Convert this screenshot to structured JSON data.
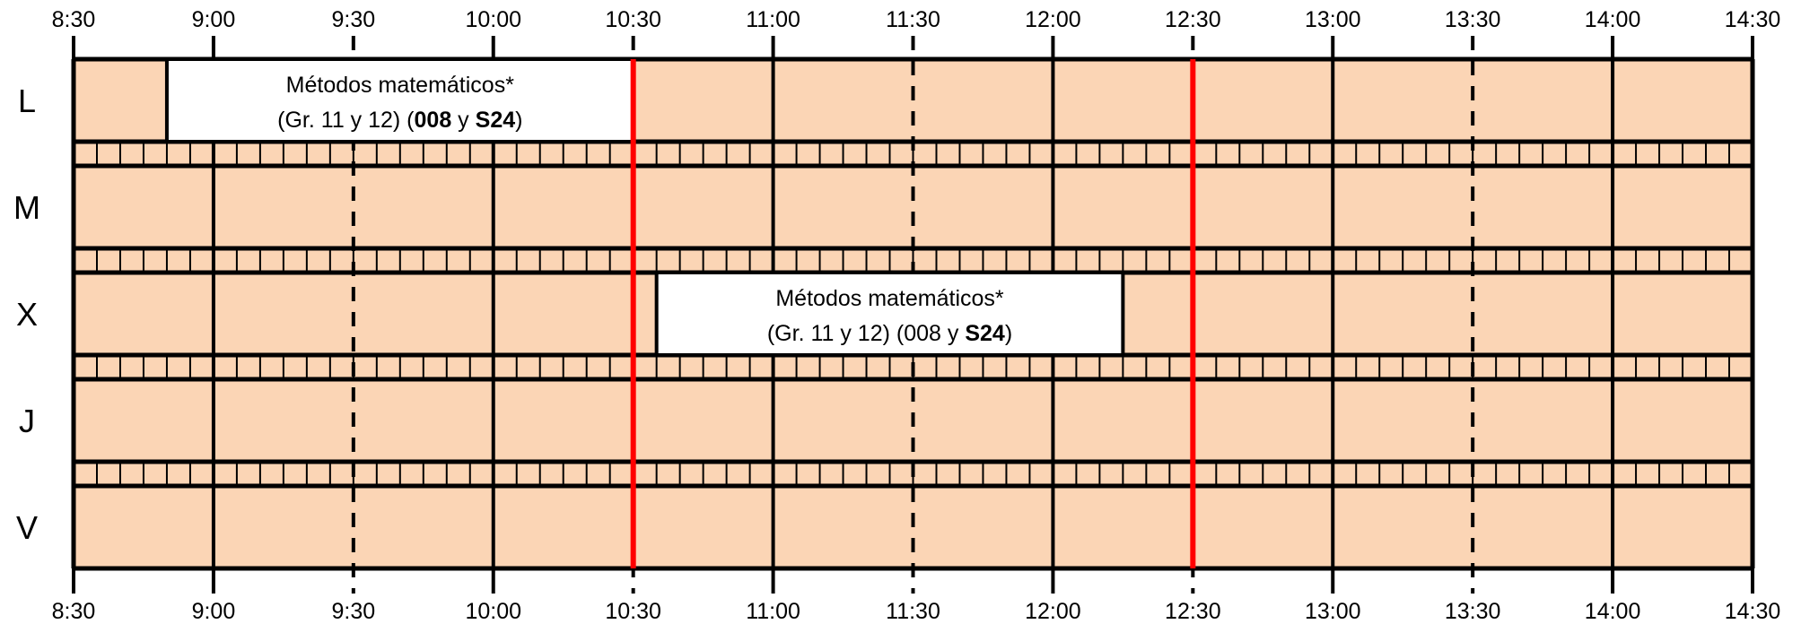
{
  "time_axis": {
    "ticks": [
      "8:30",
      "9:00",
      "9:30",
      "10:00",
      "10:30",
      "11:00",
      "11:30",
      "12:00",
      "12:30",
      "13:00",
      "13:30",
      "14:00",
      "14:30"
    ],
    "solid_ticks": [
      "8:30",
      "9:00",
      "10:00",
      "11:00",
      "12:00",
      "13:00",
      "14:00",
      "14:30"
    ],
    "dashed_ticks": [
      "9:30",
      "11:30",
      "13:30"
    ],
    "highlight_ticks": [
      "10:30",
      "12:30"
    ]
  },
  "days": [
    "L",
    "M",
    "X",
    "J",
    "V"
  ],
  "events": [
    {
      "day": "L",
      "start": "8:50",
      "end": "10:30",
      "title": "Métodos matemáticos*",
      "line2": [
        {
          "text": "(Gr. 11 y 12) (",
          "bold": false
        },
        {
          "text": "008",
          "bold": true
        },
        {
          "text": " y ",
          "bold": false
        },
        {
          "text": "S24",
          "bold": true
        },
        {
          "text": ")",
          "bold": false
        }
      ]
    },
    {
      "day": "X",
      "start": "10:35",
      "end": "12:15",
      "title": "Métodos matemáticos*",
      "line2": [
        {
          "text": "(Gr. 11 y 12) (008 y ",
          "bold": false
        },
        {
          "text": "S24",
          "bold": true
        },
        {
          "text": ")",
          "bold": false
        }
      ]
    }
  ],
  "colors": {
    "free_slot": "#fbd5b5",
    "event_box": "#ffffff",
    "grid": "#000000",
    "highlight": "#ff0000",
    "break_strip": "#fbd5b5"
  }
}
